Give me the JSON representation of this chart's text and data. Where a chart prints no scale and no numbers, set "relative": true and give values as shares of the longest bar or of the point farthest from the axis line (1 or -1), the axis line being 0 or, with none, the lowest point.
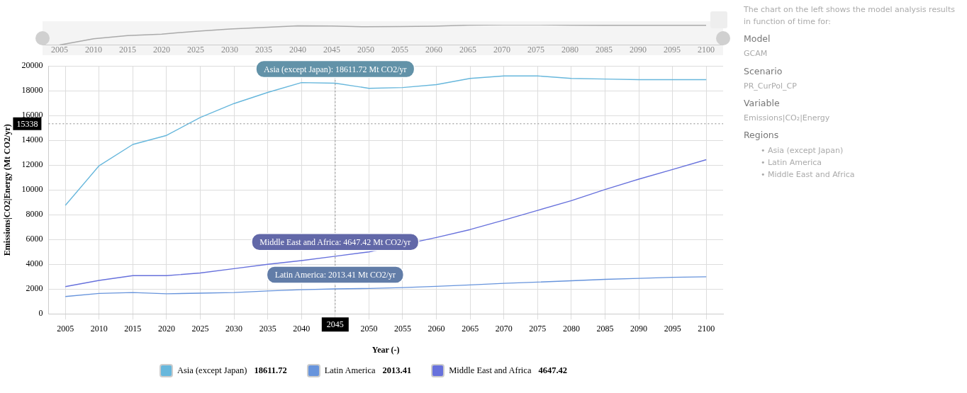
{
  "chart_data": [
    {
      "type": "line",
      "relative": true,
      "tick_labels": "x",
      "grid": false,
      "marker": "none",
      "categories": [
        "2005",
        "2010",
        "2015",
        "2020",
        "2025",
        "2030",
        "2035",
        "2040",
        "2045",
        "2050",
        "2055",
        "2060",
        "2065",
        "2070",
        "2075",
        "2080",
        "2085",
        "2090",
        "2095",
        "2100"
      ],
      "series": [
        {
          "color": "#aaaaaa",
          "values": [
            0,
            0.31,
            0.47,
            0.54,
            0.68,
            0.79,
            0.87,
            0.95,
            0.94,
            0.9,
            0.91,
            0.93,
            0.98,
            1,
            1,
            0.98,
            0.97,
            0.97,
            0.97,
            0.97
          ]
        }
      ]
    },
    {
      "type": "line",
      "xlabel": "Year (-)",
      "ylabel": "Emissions|CO2|Energy (Mt CO2/yr)",
      "grid": true,
      "legend": "bottom",
      "marker": "none",
      "categories": [
        "2005",
        "2010",
        "2015",
        "2020",
        "2025",
        "2030",
        "2035",
        "2040",
        "2045",
        "2050",
        "2055",
        "2060",
        "2065",
        "2070",
        "2075",
        "2080",
        "2085",
        "2090",
        "2095",
        "2100"
      ],
      "ylim": [
        0,
        20000
      ],
      "yticks": [
        0,
        2000,
        4000,
        6000,
        8000,
        10000,
        12000,
        14000,
        16000,
        18000,
        20000
      ],
      "series": [
        {
          "name": "Asia (except Japan)",
          "color": "#67b7dc",
          "values": [
            8750,
            11950,
            13670,
            14400,
            15850,
            16970,
            17870,
            18660,
            18611.72,
            18200,
            18260,
            18500,
            19000,
            19200,
            19200,
            19000,
            18950,
            18900,
            18900,
            18900
          ]
        },
        {
          "name": "Latin America",
          "color": "#6794dc",
          "values": [
            1400,
            1650,
            1720,
            1620,
            1670,
            1720,
            1850,
            1950,
            2013.41,
            2050,
            2120,
            2220,
            2330,
            2460,
            2560,
            2670,
            2780,
            2860,
            2950,
            2990
          ]
        },
        {
          "name": "Middle East and Africa",
          "color": "#6771dc",
          "values": [
            2200,
            2700,
            3080,
            3080,
            3300,
            3650,
            4000,
            4300,
            4647.42,
            5000,
            null,
            6160,
            6800,
            7560,
            8350,
            9130,
            10030,
            10870,
            11650,
            12440
          ]
        }
      ],
      "ref_lines": [
        {
          "axis": "y",
          "value": 15338,
          "label": "15338",
          "line_style": "dotted"
        },
        {
          "axis": "x",
          "value": "2045",
          "label": "2045",
          "line_style": "dotted"
        }
      ],
      "annotations": [
        {
          "text": "Asia (except Japan): 18611.72 Mt CO2/yr",
          "x": "2045",
          "y": 18611.72
        },
        {
          "text": "Middle East and Africa: 4647.42 Mt CO2/yr",
          "x": "2045",
          "y": 4647.42
        },
        {
          "text": "Latin America: 2013.41 Mt CO2/yr",
          "x": "2045",
          "y": 2013.41
        },
        "18611.72",
        "2013.41",
        "4647.42"
      ]
    },
    {
      "type": "other",
      "annotations": [
        "The chart on the left shows the model analysis results in function of time for:",
        "Model",
        "GCAM",
        "Scenario",
        "PR_CurPol_CP",
        "Variable",
        "Emissions|CO₂|Energy",
        "Regions",
        "• Asia (except Japan)",
        "• Latin America",
        "• Middle East and Africa"
      ]
    }
  ]
}
